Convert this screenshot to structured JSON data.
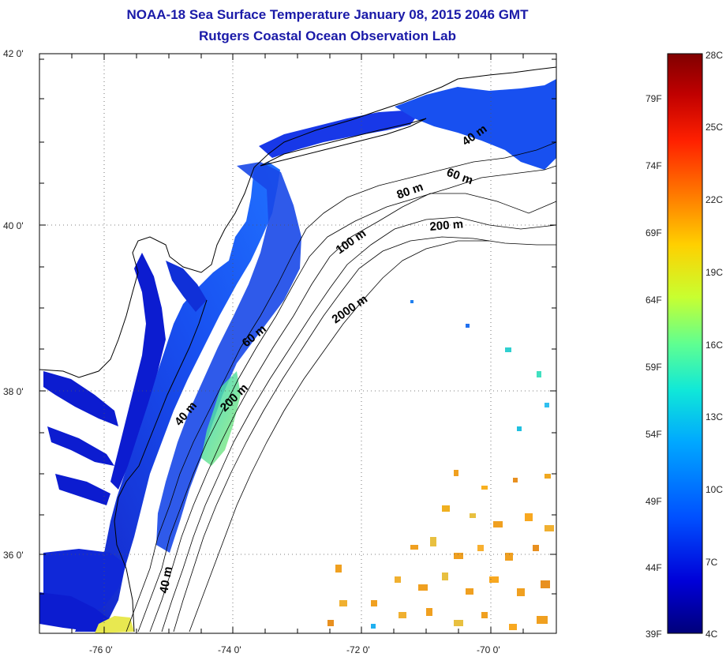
{
  "title_line1": "NOAA-18 Sea Surface Temperature January 08, 2015 2046 GMT",
  "title_line2": "Rutgers Coastal Ocean Observation Lab",
  "map": {
    "lat_labels": [
      "42 0'",
      "40 0'",
      "38 0'",
      "36 0'"
    ],
    "lon_labels": [
      "-76 0'",
      "-74 0'",
      "-72 0'",
      "-70 0'"
    ],
    "contour_labels": [
      "40 m",
      "60 m",
      "80 m",
      "200 m",
      "100 m",
      "2000 m",
      "60 m",
      "200 m",
      "40 m",
      "40 m"
    ]
  },
  "colorbar": {
    "celsius_labels": [
      "28C",
      "25C",
      "22C",
      "19C",
      "16C",
      "13C",
      "10C",
      "7C",
      "4C"
    ],
    "fahrenheit_labels": [
      "79F",
      "74F",
      "69F",
      "64F",
      "59F",
      "54F",
      "49F",
      "44F",
      "39F"
    ],
    "colors": [
      "#00007a",
      "#0000d8",
      "#0050ff",
      "#00a8ff",
      "#10e8d8",
      "#60ff90",
      "#c8ff30",
      "#ffd000",
      "#ff8000",
      "#ff2000",
      "#c00000",
      "#800000"
    ]
  },
  "colors": {
    "title": "#1a1aa8",
    "water_cold": "#1030d8",
    "water_warm": "#f0a020"
  }
}
